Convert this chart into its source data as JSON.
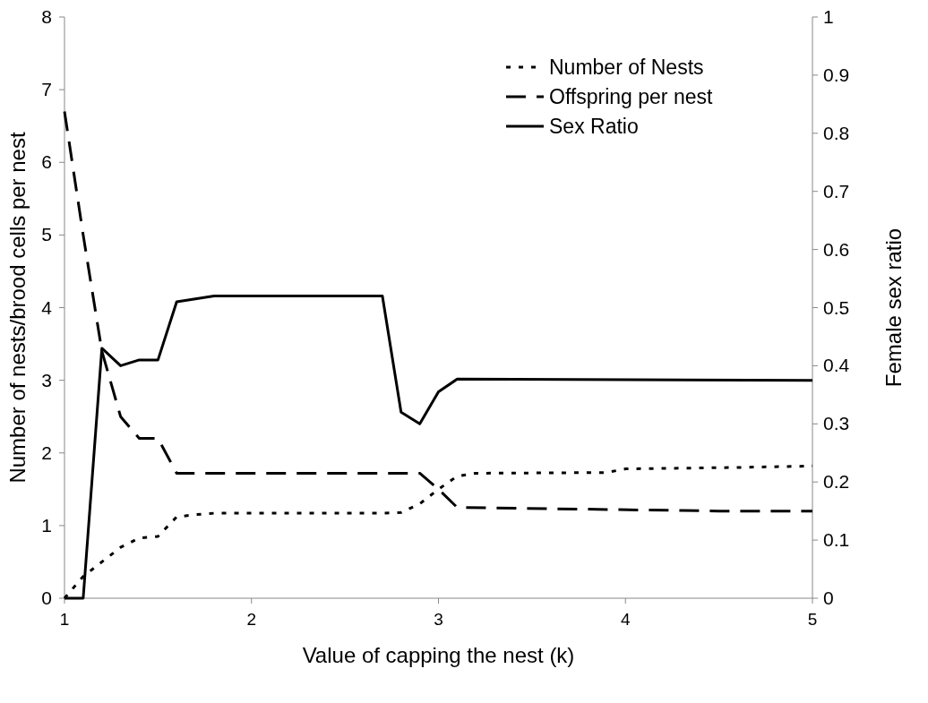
{
  "chart_data": {
    "type": "line",
    "xlabel": "Value of capping the nest (k)",
    "ylabel": "Number of nests/brood cells per nest",
    "y2label": "Female sex ratio",
    "xlim": [
      1,
      5
    ],
    "xticks": [
      1,
      2,
      3,
      4,
      5
    ],
    "ylim": [
      0,
      8
    ],
    "yticks": [
      0,
      1,
      2,
      3,
      4,
      5,
      6,
      7,
      8
    ],
    "y2lim": [
      0,
      1
    ],
    "y2ticks": [
      0,
      0.1,
      0.2,
      0.3,
      0.4,
      0.5,
      0.6,
      0.7,
      0.8,
      0.9,
      1
    ],
    "grid": false,
    "legend": "top right",
    "series": [
      {
        "name": "Number of Nests",
        "color": "#000000",
        "line_style": "dotted",
        "x": [
          1,
          1.1,
          1.2,
          1.3,
          1.4,
          1.5,
          1.6,
          1.7,
          1.8,
          2.7,
          2.8,
          2.9,
          3,
          3.1,
          3.2,
          3.9,
          4,
          4.6,
          5
        ],
        "values": [
          0,
          0.3,
          0.5,
          0.7,
          0.83,
          0.85,
          1.12,
          1.15,
          1.17,
          1.17,
          1.18,
          1.3,
          1.5,
          1.68,
          1.72,
          1.73,
          1.78,
          1.8,
          1.82
        ]
      },
      {
        "name": "Offspring per nest",
        "color": "#000000",
        "line_style": "dashed",
        "x": [
          1,
          1.1,
          1.2,
          1.3,
          1.4,
          1.5,
          1.6,
          2.9,
          3,
          3.1,
          4.5,
          5
        ],
        "values": [
          6.7,
          5,
          3.4,
          2.5,
          2.2,
          2.2,
          1.72,
          1.72,
          1.5,
          1.25,
          1.2,
          1.2
        ]
      },
      {
        "name": "Sex Ratio",
        "color": "#000000",
        "line_style": "solid",
        "axis": "y2",
        "x": [
          1,
          1.1,
          1.2,
          1.3,
          1.4,
          1.5,
          1.6,
          1.7,
          1.8,
          2.7,
          2.8,
          2.9,
          3,
          3.1,
          5
        ],
        "values": [
          0,
          0,
          0.43,
          0.4,
          0.41,
          0.41,
          0.51,
          0.515,
          0.52,
          0.52,
          0.32,
          0.3,
          0.355,
          0.377,
          0.375
        ]
      }
    ]
  }
}
